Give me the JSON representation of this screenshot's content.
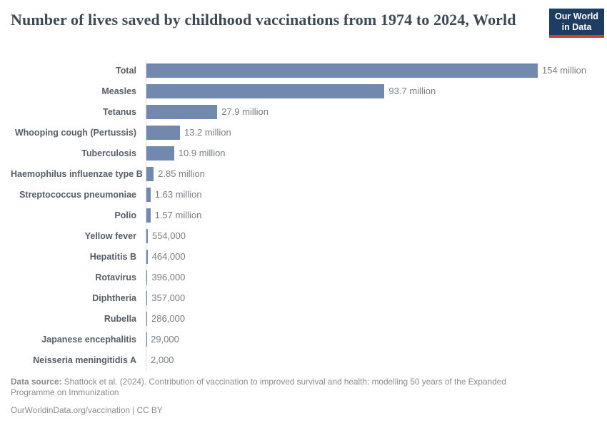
{
  "header": {
    "title": "Number of lives saved by childhood vaccinations from 1974 to 2024, World",
    "logo": {
      "line1": "Our World",
      "line2": "in Data"
    }
  },
  "chart_data": {
    "type": "bar",
    "orientation": "horizontal",
    "title": "Number of lives saved by childhood vaccinations from 1974 to 2024, World",
    "categories": [
      "Total",
      "Measles",
      "Tetanus",
      "Whooping cough (Pertussis)",
      "Tuberculosis",
      "Haemophilus influenzae type B",
      "Streptococcus pneumoniae",
      "Polio",
      "Yellow fever",
      "Hepatitis B",
      "Rotavirus",
      "Diphtheria",
      "Rubella",
      "Japanese encephalitis",
      "Neisseria meningitidis A"
    ],
    "values": [
      154000000,
      93700000,
      27900000,
      13200000,
      10900000,
      2850000,
      1630000,
      1570000,
      554000,
      464000,
      396000,
      357000,
      286000,
      29000,
      2000
    ],
    "value_labels": [
      "154 million",
      "93.7 million",
      "27.9 million",
      "13.2 million",
      "10.9 million",
      "2.85 million",
      "1.63 million",
      "1.57 million",
      "554,000",
      "464,000",
      "396,000",
      "357,000",
      "286,000",
      "29,000",
      "2,000"
    ],
    "xlim": [
      0,
      154000000
    ],
    "grid": false,
    "legend": false,
    "bar_color": "#7189ae",
    "axis_color": "#dcdcdc"
  },
  "footer": {
    "source_label": "Data source:",
    "source_text": " Shattock et al. (2024). Contribution of vaccination to improved survival and health: modelling 50 years of the Expanded Programme on Immunization",
    "attribution": "OurWorldinData.org/vaccination | CC BY"
  }
}
